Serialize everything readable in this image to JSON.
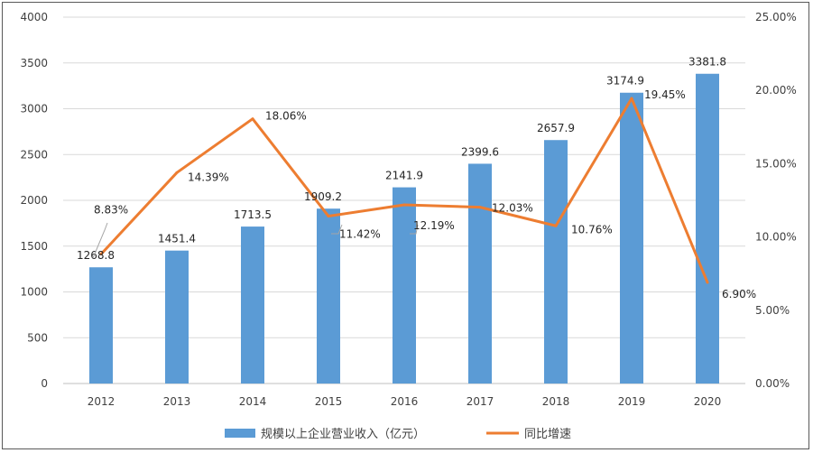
{
  "chart_data": {
    "type": "bar+line",
    "categories": [
      "2012",
      "2013",
      "2014",
      "2015",
      "2016",
      "2017",
      "2018",
      "2019",
      "2020"
    ],
    "series": [
      {
        "name": "规模以上企业营业收入（亿元）",
        "type": "bar",
        "axis": "left",
        "color": "#5b9bd5",
        "values": [
          1268.8,
          1451.4,
          1713.5,
          1909.2,
          2141.9,
          2399.6,
          2657.9,
          3174.9,
          3381.8
        ],
        "labels": [
          "1268.8",
          "1451.4",
          "1713.5",
          "1909.2",
          "2141.9",
          "2399.6",
          "2657.9",
          "3174.9",
          "3381.8"
        ]
      },
      {
        "name": "同比增速",
        "type": "line",
        "axis": "right",
        "color": "#ed7d31",
        "values": [
          8.83,
          14.39,
          18.06,
          11.42,
          12.19,
          12.03,
          10.76,
          19.45,
          6.9
        ],
        "labels": [
          "8.83%",
          "14.39%",
          "18.06%",
          "11.42%",
          "12.19%",
          "12.03%",
          "10.76%",
          "19.45%",
          "6.90%"
        ]
      }
    ],
    "y_left": {
      "min": 0,
      "max": 4000,
      "ticks": [
        "0",
        "500",
        "1000",
        "1500",
        "2000",
        "2500",
        "3000",
        "3500",
        "4000"
      ]
    },
    "y_right": {
      "min": 0,
      "max": 25,
      "ticks": [
        "0.00%",
        "5.00%",
        "10.00%",
        "15.00%",
        "20.00%",
        "25.00%"
      ]
    },
    "grid": "horizontal",
    "legend": "bottom-center"
  }
}
